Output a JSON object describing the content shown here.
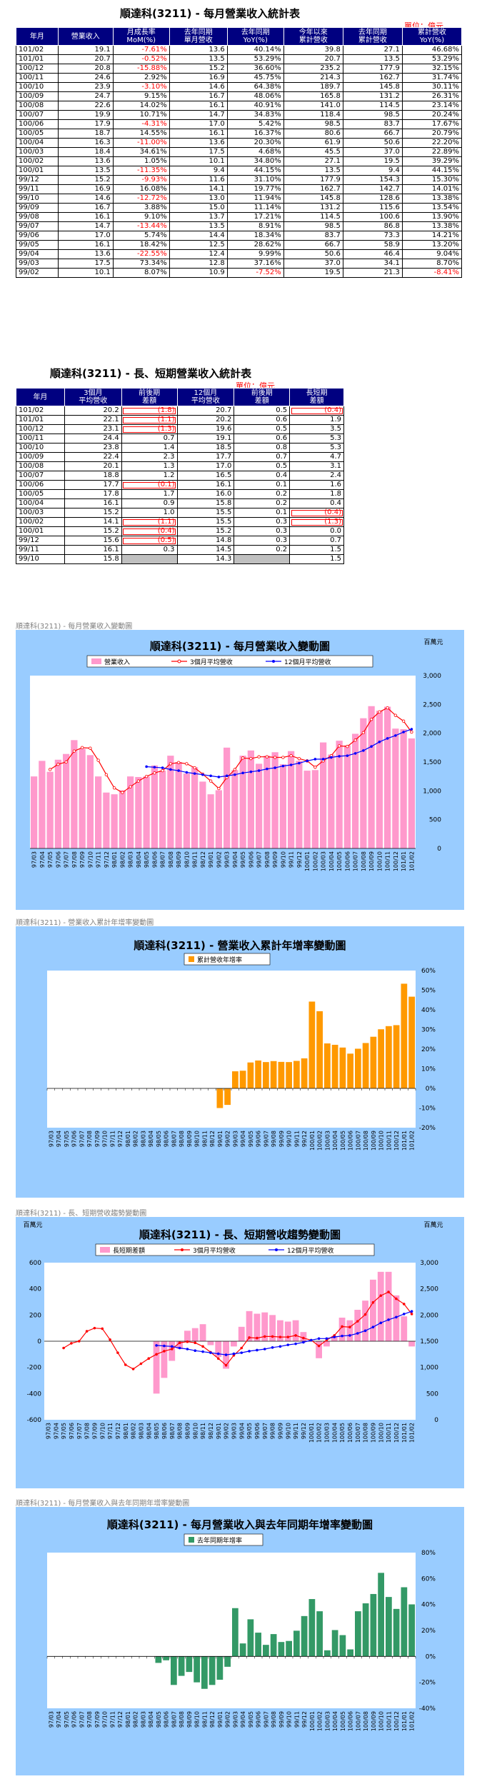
{
  "monthly": {
    "title": "順達科(3211) - 每月營業收入統計表",
    "unit": "單位：億元",
    "headers": [
      [
        "年月"
      ],
      [
        "營業收入"
      ],
      [
        "月成長率",
        "MoM(%)"
      ],
      [
        "去年同期",
        "單月營收"
      ],
      [
        "去年同期",
        "YoY(%)"
      ],
      [
        "今年以來",
        "累計營收"
      ],
      [
        "去年同期",
        "累計營收"
      ],
      [
        "累計營收",
        "YoY(%)"
      ]
    ],
    "rows": [
      [
        "101/02",
        "19.1",
        "-7.61%",
        "13.6",
        "40.14%",
        "39.8",
        "27.1",
        "46.68%"
      ],
      [
        "101/01",
        "20.7",
        "-0.52%",
        "13.5",
        "53.29%",
        "20.7",
        "13.5",
        "53.29%"
      ],
      [
        "100/12",
        "20.8",
        "-15.88%",
        "15.2",
        "36.60%",
        "235.2",
        "177.9",
        "32.15%"
      ],
      [
        "100/11",
        "24.6",
        "2.92%",
        "16.9",
        "45.75%",
        "214.3",
        "162.7",
        "31.74%"
      ],
      [
        "100/10",
        "23.9",
        "-3.10%",
        "14.6",
        "64.38%",
        "189.7",
        "145.8",
        "30.11%"
      ],
      [
        "100/09",
        "24.7",
        "9.15%",
        "16.7",
        "48.06%",
        "165.8",
        "131.2",
        "26.31%"
      ],
      [
        "100/08",
        "22.6",
        "14.02%",
        "16.1",
        "40.91%",
        "141.0",
        "114.5",
        "23.14%"
      ],
      [
        "100/07",
        "19.9",
        "10.71%",
        "14.7",
        "34.83%",
        "118.4",
        "98.5",
        "20.24%"
      ],
      [
        "100/06",
        "17.9",
        "-4.31%",
        "17.0",
        "5.42%",
        "98.5",
        "83.7",
        "17.67%"
      ],
      [
        "100/05",
        "18.7",
        "14.55%",
        "16.1",
        "16.37%",
        "80.6",
        "66.7",
        "20.79%"
      ],
      [
        "100/04",
        "16.3",
        "-11.00%",
        "13.6",
        "20.30%",
        "61.9",
        "50.6",
        "22.20%"
      ],
      [
        "100/03",
        "18.4",
        "34.61%",
        "17.5",
        "4.68%",
        "45.5",
        "37.0",
        "22.89%"
      ],
      [
        "100/02",
        "13.6",
        "1.05%",
        "10.1",
        "34.80%",
        "27.1",
        "19.5",
        "39.29%"
      ],
      [
        "100/01",
        "13.5",
        "-11.35%",
        "9.4",
        "44.15%",
        "13.5",
        "9.4",
        "44.15%"
      ],
      [
        "99/12",
        "15.2",
        "-9.93%",
        "11.6",
        "31.10%",
        "177.9",
        "154.3",
        "15.30%"
      ],
      [
        "99/11",
        "16.9",
        "16.08%",
        "14.1",
        "19.77%",
        "162.7",
        "142.7",
        "14.01%"
      ],
      [
        "99/10",
        "14.6",
        "-12.72%",
        "13.0",
        "11.94%",
        "145.8",
        "128.6",
        "13.38%"
      ],
      [
        "99/09",
        "16.7",
        "3.88%",
        "15.0",
        "11.14%",
        "131.2",
        "115.6",
        "13.54%"
      ],
      [
        "99/08",
        "16.1",
        "9.10%",
        "13.7",
        "17.21%",
        "114.5",
        "100.6",
        "13.90%"
      ],
      [
        "99/07",
        "14.7",
        "-13.44%",
        "13.5",
        "8.91%",
        "98.5",
        "86.8",
        "13.38%"
      ],
      [
        "99/06",
        "17.0",
        "5.74%",
        "14.4",
        "18.34%",
        "83.7",
        "73.3",
        "14.21%"
      ],
      [
        "99/05",
        "16.1",
        "18.42%",
        "12.5",
        "28.62%",
        "66.7",
        "58.9",
        "13.20%"
      ],
      [
        "99/04",
        "13.6",
        "-22.55%",
        "12.4",
        "9.99%",
        "50.6",
        "46.4",
        "9.04%"
      ],
      [
        "99/03",
        "17.5",
        "73.34%",
        "12.8",
        "37.16%",
        "37.0",
        "34.1",
        "8.70%"
      ],
      [
        "99/02",
        "10.1",
        "8.07%",
        "10.9",
        "-7.52%",
        "19.5",
        "21.3",
        "-8.41%"
      ]
    ]
  },
  "longshort": {
    "title": "順達科(3211) - 長、短期營業收入統計表",
    "unit": "單位：億元",
    "headers": [
      [
        "年月"
      ],
      [
        "3個月",
        "平均營收"
      ],
      [
        "前後期",
        "差額"
      ],
      [
        "12個月",
        "平均營收"
      ],
      [
        "前後期",
        "差額"
      ],
      [
        "長短期",
        "差額"
      ]
    ],
    "rows": [
      [
        "101/02",
        "20.2",
        "(1.8)",
        "20.7",
        "0.5",
        "(0.4)"
      ],
      [
        "101/01",
        "22.1",
        "(1.1)",
        "20.2",
        "0.6",
        "1.9"
      ],
      [
        "100/12",
        "23.1",
        "(1.3)",
        "19.6",
        "0.5",
        "3.5"
      ],
      [
        "100/11",
        "24.4",
        "0.7",
        "19.1",
        "0.6",
        "5.3"
      ],
      [
        "100/10",
        "23.8",
        "1.4",
        "18.5",
        "0.8",
        "5.3"
      ],
      [
        "100/09",
        "22.4",
        "2.3",
        "17.7",
        "0.7",
        "4.7"
      ],
      [
        "100/08",
        "20.1",
        "1.3",
        "17.0",
        "0.5",
        "3.1"
      ],
      [
        "100/07",
        "18.8",
        "1.2",
        "16.5",
        "0.4",
        "2.4"
      ],
      [
        "100/06",
        "17.7",
        "(0.1)",
        "16.1",
        "0.1",
        "1.6"
      ],
      [
        "100/05",
        "17.8",
        "1.7",
        "16.0",
        "0.2",
        "1.8"
      ],
      [
        "100/04",
        "16.1",
        "0.9",
        "15.8",
        "0.2",
        "0.4"
      ],
      [
        "100/03",
        "15.2",
        "1.0",
        "15.5",
        "0.1",
        "(0.4)"
      ],
      [
        "100/02",
        "14.1",
        "(1.1)",
        "15.5",
        "0.3",
        "(1.3)"
      ],
      [
        "100/01",
        "15.2",
        "(0.4)",
        "15.2",
        "0.3",
        "0.0"
      ],
      [
        "99/12",
        "15.6",
        "(0.5)",
        "14.8",
        "0.3",
        "0.7"
      ],
      [
        "99/11",
        "16.1",
        "0.3",
        "14.5",
        "0.2",
        "1.5"
      ],
      [
        "99/10",
        "15.8",
        "",
        "14.3",
        "",
        "1.5"
      ]
    ]
  },
  "captions": {
    "c1": "順達科(3211) - 每月營業收入變動圖",
    "c2": "順達科(3211) -  營業收入累計年增率變動圖",
    "c3": "順達科(3211) -  長、短期營收趨勢變動圖",
    "c4": "順達科(3211) -  每月營業收入與去年同期年增率變動圖"
  },
  "colors": {
    "pink": "#ff99cc",
    "red": "#ff0000",
    "blue": "#0000ff",
    "orange": "#ff9900",
    "green": "#339966",
    "panel": "#99ccff"
  },
  "chart_data": [
    {
      "type": "bar",
      "title": "順達科(3211) - 每月營業收入變動圖",
      "unit_label": "百萬元",
      "legend": [
        "營業收入",
        "3個月平均營收",
        "12個月平均營收"
      ],
      "ylim": [
        0,
        3000
      ],
      "yticks": [
        "0",
        "500",
        "1,000",
        "1,500",
        "2,000",
        "2,500",
        "3,000"
      ],
      "x": [
        "97/03",
        "97/04",
        "97/05",
        "97/06",
        "97/07",
        "97/08",
        "97/09",
        "97/10",
        "97/11",
        "97/12",
        "98/01",
        "98/02",
        "98/03",
        "98/04",
        "98/05",
        "98/06",
        "98/07",
        "98/08",
        "98/09",
        "98/10",
        "98/11",
        "98/12",
        "99/01",
        "99/02",
        "99/03",
        "99/04",
        "99/05",
        "99/06",
        "99/07",
        "99/08",
        "99/09",
        "99/10",
        "99/11",
        "99/12",
        "100/01",
        "100/02",
        "100/03",
        "100/04",
        "100/05",
        "100/06",
        "100/07",
        "100/08",
        "100/09",
        "100/10",
        "100/11",
        "100/12",
        "101/01",
        "101/02"
      ],
      "revenue": [
        1250,
        1520,
        1330,
        1540,
        1640,
        1880,
        1730,
        1620,
        1250,
        970,
        940,
        1010,
        1250,
        1240,
        1250,
        1440,
        1350,
        1610,
        1500,
        1300,
        1410,
        1160,
        940,
        1010,
        1750,
        1360,
        1610,
        1700,
        1470,
        1610,
        1670,
        1460,
        1690,
        1520,
        1350,
        1360,
        1840,
        1630,
        1870,
        1790,
        1990,
        2260,
        2470,
        2390,
        2460,
        2080,
        2070,
        1910
      ],
      "avg3": [
        null,
        null,
        1370,
        1460,
        1500,
        1690,
        1750,
        1740,
        1530,
        1280,
        1050,
        970,
        1070,
        1170,
        1250,
        1310,
        1350,
        1470,
        1490,
        1470,
        1400,
        1290,
        1170,
        1040,
        1230,
        1370,
        1570,
        1560,
        1590,
        1590,
        1580,
        1580,
        1610,
        1560,
        1520,
        1410,
        1520,
        1610,
        1780,
        1770,
        1880,
        2010,
        2240,
        2370,
        2440,
        2310,
        2210,
        2020
      ],
      "avg12": [
        null,
        null,
        null,
        null,
        null,
        null,
        null,
        null,
        null,
        null,
        null,
        null,
        null,
        null,
        1420,
        1410,
        1400,
        1370,
        1350,
        1320,
        1300,
        1280,
        1260,
        1240,
        1260,
        1280,
        1310,
        1330,
        1350,
        1380,
        1400,
        1430,
        1450,
        1480,
        1520,
        1550,
        1550,
        1580,
        1600,
        1610,
        1650,
        1700,
        1770,
        1850,
        1910,
        1960,
        2020,
        2070
      ]
    },
    {
      "type": "bar",
      "title": "順達科(3211) -  營業收入累計年增率變動圖",
      "legend": [
        "累計營收年增率"
      ],
      "ylim": [
        -20,
        60
      ],
      "yticks": [
        "-20%",
        "-10%",
        "0%",
        "10%",
        "20%",
        "30%",
        "40%",
        "50%",
        "60%"
      ],
      "x": [
        "97/03",
        "97/04",
        "97/05",
        "97/06",
        "97/07",
        "97/08",
        "97/09",
        "97/10",
        "97/11",
        "97/12",
        "98/01",
        "98/02",
        "98/03",
        "98/04",
        "98/05",
        "98/06",
        "98/07",
        "98/08",
        "98/09",
        "98/10",
        "98/11",
        "98/12",
        "99/01",
        "99/02",
        "99/03",
        "99/04",
        "99/05",
        "99/06",
        "99/07",
        "99/08",
        "99/09",
        "99/10",
        "99/11",
        "99/12",
        "100/01",
        "100/02",
        "100/03",
        "100/04",
        "100/05",
        "100/06",
        "100/07",
        "100/08",
        "100/09",
        "100/10",
        "100/11",
        "100/12",
        "101/01",
        "101/02"
      ],
      "values": [
        null,
        null,
        null,
        null,
        null,
        null,
        null,
        null,
        null,
        null,
        null,
        null,
        null,
        null,
        null,
        null,
        null,
        null,
        null,
        null,
        null,
        null,
        -10,
        -8.4,
        8.7,
        9.0,
        13.2,
        14.2,
        13.4,
        13.9,
        13.5,
        13.4,
        14.0,
        15.3,
        44.2,
        39.3,
        22.9,
        22.2,
        20.8,
        17.7,
        20.2,
        23.1,
        26.3,
        30.1,
        31.7,
        32.2,
        53.3,
        46.7
      ]
    },
    {
      "type": "bar",
      "title": "順達科(3211) -  長、短期營收趨勢變動圖",
      "unit_label": "百萬元",
      "legend": [
        "長短期差額",
        "3個月平均營收",
        "12個月平均營收"
      ],
      "ylim_left": [
        -600,
        600
      ],
      "yticks_left": [
        "-600",
        "-400",
        "-200",
        "0",
        "200",
        "400",
        "600"
      ],
      "ylim_right": [
        0,
        3000
      ],
      "yticks_right": [
        "0",
        "500",
        "1,000",
        "1,500",
        "2,000",
        "2,500",
        "3,000"
      ],
      "x": [
        "97/03",
        "97/04",
        "97/05",
        "97/06",
        "97/07",
        "97/08",
        "97/09",
        "97/10",
        "97/11",
        "97/12",
        "98/01",
        "98/02",
        "98/03",
        "98/04",
        "98/05",
        "98/06",
        "98/07",
        "98/08",
        "98/09",
        "98/10",
        "98/11",
        "98/12",
        "99/01",
        "99/02",
        "99/03",
        "99/04",
        "99/05",
        "99/06",
        "99/07",
        "99/08",
        "99/09",
        "99/10",
        "99/11",
        "99/12",
        "100/01",
        "100/02",
        "100/03",
        "100/04",
        "100/05",
        "100/06",
        "100/07",
        "100/08",
        "100/09",
        "100/10",
        "100/11",
        "100/12",
        "101/01",
        "101/02"
      ],
      "diff": [
        null,
        null,
        null,
        null,
        null,
        null,
        null,
        null,
        null,
        null,
        null,
        null,
        null,
        null,
        -400,
        -280,
        -150,
        -60,
        80,
        100,
        130,
        -30,
        -120,
        -210,
        -40,
        110,
        230,
        210,
        220,
        200,
        160,
        150,
        160,
        70,
        0,
        -130,
        -40,
        40,
        180,
        160,
        240,
        310,
        470,
        530,
        530,
        350,
        190,
        -40
      ],
      "avg3": [
        null,
        null,
        1370,
        1460,
        1500,
        1690,
        1750,
        1740,
        1530,
        1280,
        1050,
        970,
        1070,
        1170,
        1250,
        1310,
        1350,
        1470,
        1490,
        1470,
        1400,
        1290,
        1170,
        1040,
        1230,
        1370,
        1570,
        1560,
        1590,
        1590,
        1580,
        1580,
        1610,
        1560,
        1520,
        1410,
        1520,
        1610,
        1780,
        1770,
        1880,
        2010,
        2240,
        2370,
        2440,
        2310,
        2210,
        2020
      ],
      "avg12": [
        null,
        null,
        null,
        null,
        null,
        null,
        null,
        null,
        null,
        null,
        null,
        null,
        null,
        null,
        1420,
        1410,
        1400,
        1370,
        1350,
        1320,
        1300,
        1280,
        1260,
        1240,
        1260,
        1280,
        1310,
        1330,
        1350,
        1380,
        1400,
        1430,
        1450,
        1480,
        1520,
        1550,
        1550,
        1580,
        1600,
        1610,
        1650,
        1700,
        1770,
        1850,
        1910,
        1960,
        2020,
        2070
      ]
    },
    {
      "type": "bar",
      "title": "順達科(3211) -  每月營業收入與去年同期年增率變動圖",
      "legend": [
        "去年同期年增率"
      ],
      "ylim": [
        -40,
        80
      ],
      "yticks": [
        "-40%",
        "-20%",
        "0%",
        "20%",
        "40%",
        "60%",
        "80%"
      ],
      "x": [
        "97/03",
        "97/04",
        "97/05",
        "97/06",
        "97/07",
        "97/08",
        "97/09",
        "97/10",
        "97/11",
        "97/12",
        "98/01",
        "98/02",
        "98/03",
        "98/04",
        "98/05",
        "98/06",
        "98/07",
        "98/08",
        "98/09",
        "98/10",
        "98/11",
        "98/12",
        "99/01",
        "99/02",
        "99/03",
        "99/04",
        "99/05",
        "99/06",
        "99/07",
        "99/08",
        "99/09",
        "99/10",
        "99/11",
        "99/12",
        "100/01",
        "100/02",
        "100/03",
        "100/04",
        "100/05",
        "100/06",
        "100/07",
        "100/08",
        "100/09",
        "100/10",
        "100/11",
        "100/12",
        "101/01",
        "101/02"
      ],
      "values": [
        null,
        null,
        null,
        null,
        null,
        null,
        null,
        null,
        null,
        null,
        null,
        null,
        null,
        null,
        -5,
        -3,
        -22,
        -15,
        -12,
        -20,
        -25,
        -22,
        -18,
        -8,
        37.2,
        10.0,
        28.6,
        18.3,
        8.9,
        17.2,
        11.1,
        11.9,
        19.8,
        31.1,
        44.2,
        34.8,
        4.7,
        20.3,
        16.4,
        5.4,
        34.8,
        40.9,
        48.1,
        64.4,
        45.8,
        36.6,
        53.3,
        40.1
      ]
    }
  ]
}
